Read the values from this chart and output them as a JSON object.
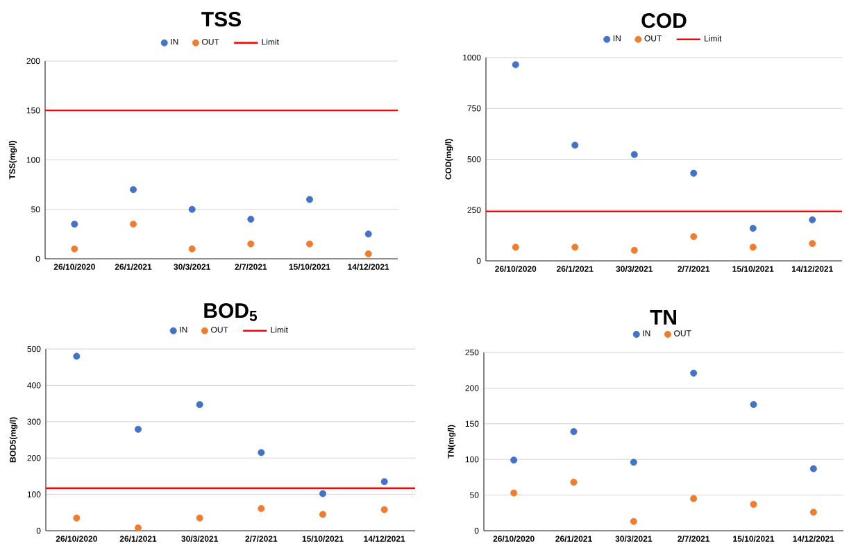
{
  "chart_data": [
    {
      "type": "scatter",
      "title": "TSS",
      "ylabel": "TSS(mg/l)",
      "categories": [
        "26/10/2020",
        "26/1/2021",
        "30/3/2021",
        "2/7/2021",
        "15/10/2021",
        "14/12/2021"
      ],
      "series": [
        {
          "name": "IN",
          "color": "#4472c4",
          "values": [
            35,
            70,
            50,
            40,
            60,
            25
          ]
        },
        {
          "name": "OUT",
          "color": "#ed7d31",
          "values": [
            10,
            35,
            10,
            15,
            15,
            5
          ]
        }
      ],
      "ref_lines": [
        {
          "axis": "y",
          "value": 150,
          "label": "Limit",
          "color": "#ff0000"
        }
      ],
      "ylim": [
        0,
        200
      ],
      "yticks": [
        0,
        50,
        100,
        150,
        200
      ],
      "grid": "y",
      "legend": "top",
      "marker": "circle"
    },
    {
      "type": "scatter",
      "title": "COD",
      "ylabel": "COD(mg/l)",
      "categories": [
        "26/10/2020",
        "26/1/2021",
        "30/3/2021",
        "2/7/2021",
        "15/10/2021",
        "14/12/2021"
      ],
      "series": [
        {
          "name": "IN",
          "color": "#4472c4",
          "values": [
            965,
            569,
            523,
            431,
            160,
            202
          ]
        },
        {
          "name": "OUT",
          "color": "#ed7d31",
          "values": [
            67,
            67,
            52,
            119,
            67,
            85
          ]
        }
      ],
      "ref_lines": [
        {
          "axis": "y",
          "value": 243,
          "label": "Limit",
          "color": "#ff0000"
        }
      ],
      "ylim": [
        0,
        1000
      ],
      "yticks": [
        0,
        250,
        500,
        750,
        1000
      ],
      "grid": "y",
      "legend": "top",
      "marker": "circle"
    },
    {
      "type": "scatter",
      "title": "BOD$_{5}$",
      "ylabel": "BOD5(mg/l)",
      "categories": [
        "26/10/2020",
        "26/1/2021",
        "30/3/2021",
        "2/7/2021",
        "15/10/2021",
        "14/12/2021"
      ],
      "series": [
        {
          "name": "IN",
          "color": "#4472c4",
          "values": [
            480,
            279,
            347,
            215,
            102,
            135
          ]
        },
        {
          "name": "OUT",
          "color": "#ed7d31",
          "values": [
            35,
            8,
            35,
            61,
            45,
            58
          ]
        }
      ],
      "ref_lines": [
        {
          "axis": "y",
          "value": 117,
          "label": "Limit",
          "color": "#ff0000"
        }
      ],
      "ylim": [
        0,
        500
      ],
      "yticks": [
        0,
        100,
        200,
        300,
        400,
        500
      ],
      "grid": "y",
      "legend": "top",
      "marker": "circle"
    },
    {
      "type": "scatter",
      "title": "TN",
      "ylabel": "TN(mg/l)",
      "categories": [
        "26/10/2020",
        "26/1/2021",
        "30/3/2021",
        "2/7/2021",
        "15/10/2021",
        "14/12/2021"
      ],
      "series": [
        {
          "name": "IN",
          "color": "#4472c4",
          "values": [
            99,
            139,
            96,
            221,
            177,
            87
          ]
        },
        {
          "name": "OUT",
          "color": "#ed7d31",
          "values": [
            53,
            68,
            13,
            45,
            37,
            26
          ]
        }
      ],
      "ylim": [
        0,
        250
      ],
      "yticks": [
        0,
        50,
        100,
        150,
        200,
        250
      ],
      "grid": "y",
      "legend": "top",
      "marker": "circle"
    }
  ]
}
